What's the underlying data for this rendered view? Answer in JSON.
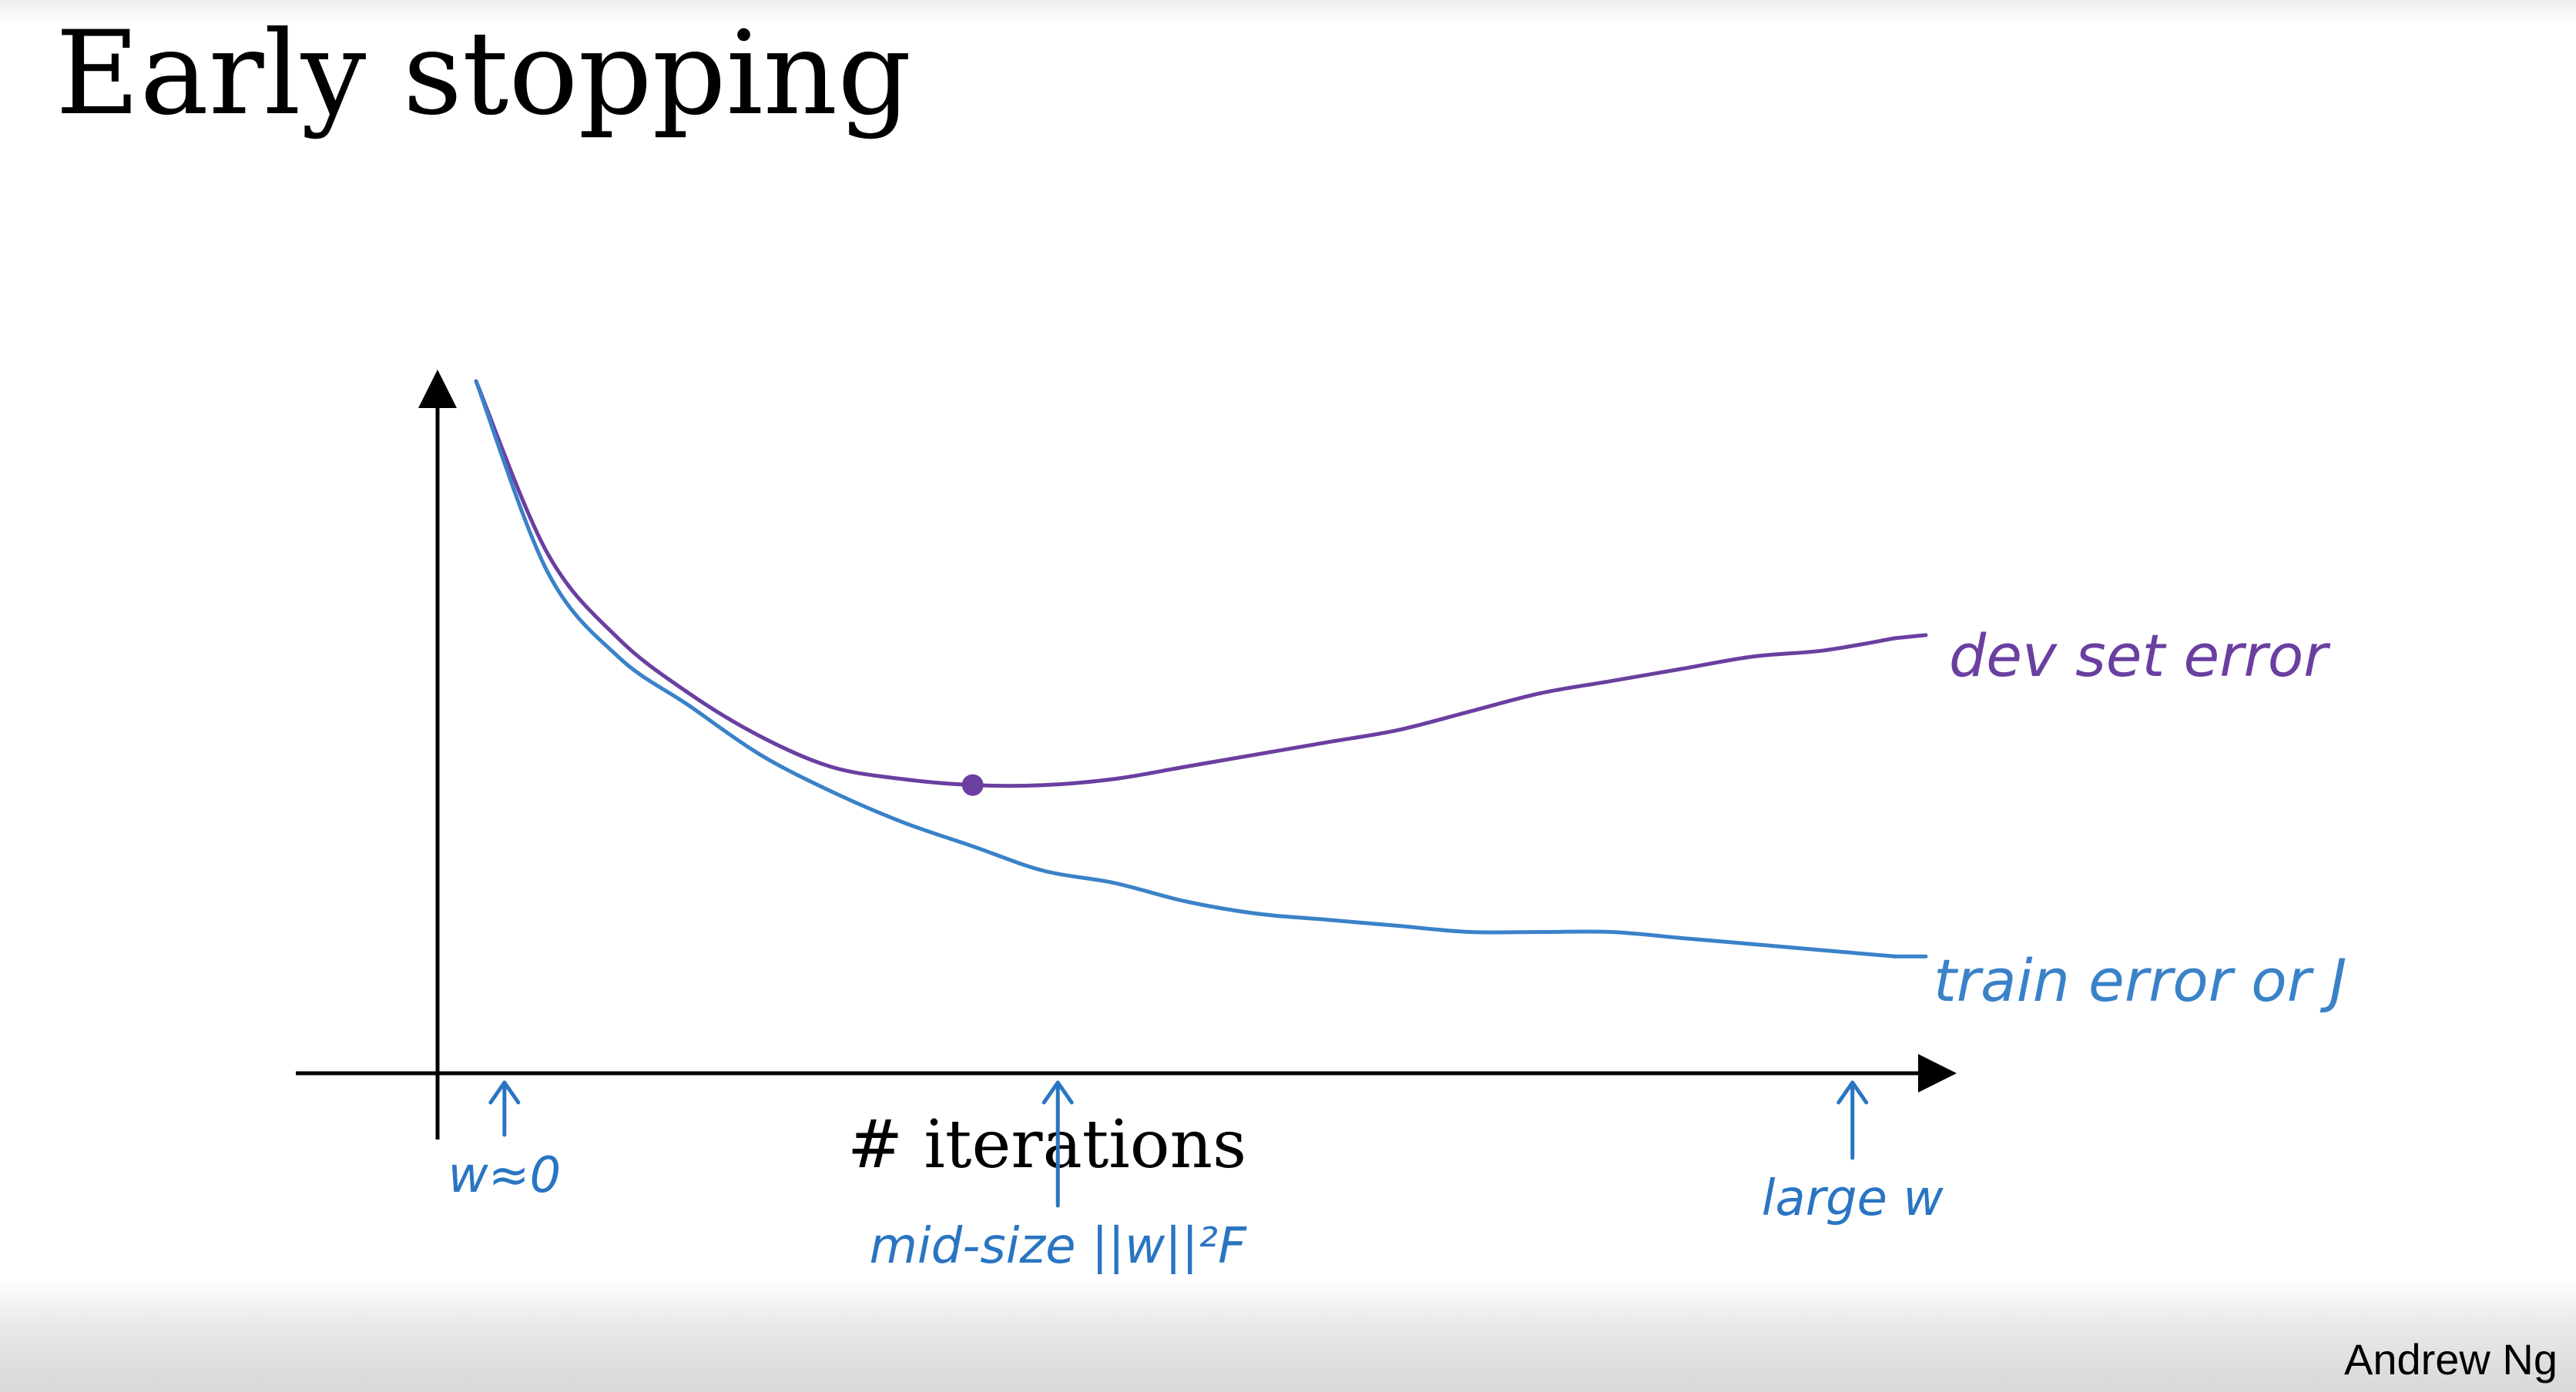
{
  "slide": {
    "title": "Early stopping",
    "author": "Andrew Ng"
  },
  "colors": {
    "dev_curve": "#6a3fa0",
    "train_curve": "#3a82c8",
    "annotation_blue": "#2a75c2",
    "axis": "#000000"
  },
  "chart_data": {
    "type": "line",
    "title": "",
    "xlabel": "# iterations",
    "ylabel": "",
    "grid": false,
    "x": [
      0,
      0.05,
      0.1,
      0.15,
      0.2,
      0.25,
      0.3,
      0.35,
      0.4,
      0.45,
      0.5,
      0.55,
      0.6,
      0.65,
      0.7,
      0.75,
      0.8,
      0.85,
      0.9,
      0.95,
      1.0
    ],
    "series": [
      {
        "name": "dev set error",
        "values": [
          1.0,
          0.72,
          0.58,
          0.49,
          0.42,
          0.37,
          0.35,
          0.34,
          0.34,
          0.35,
          0.37,
          0.39,
          0.41,
          0.43,
          0.46,
          0.49,
          0.51,
          0.53,
          0.55,
          0.56,
          0.58
        ]
      },
      {
        "name": "train error or J",
        "values": [
          1.0,
          0.69,
          0.55,
          0.47,
          0.39,
          0.33,
          0.28,
          0.24,
          0.2,
          0.18,
          0.15,
          0.13,
          0.12,
          0.11,
          0.1,
          0.1,
          0.1,
          0.09,
          0.08,
          0.07,
          0.06
        ]
      }
    ],
    "annotations": [
      {
        "text": "w≈0",
        "x": 0.02
      },
      {
        "text": "mid-size ||w||²F",
        "x": 0.41
      },
      {
        "text": "large w",
        "x": 0.97
      }
    ]
  }
}
